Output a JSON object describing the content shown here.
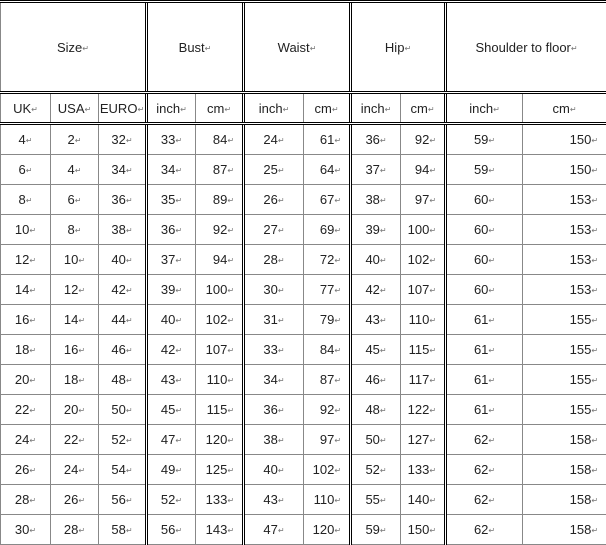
{
  "groups": [
    "Size",
    "Bust",
    "Waist",
    "Hip",
    "Shoulder to floor"
  ],
  "subheaders": [
    "UK",
    "USA",
    "EURO",
    "inch",
    "cm",
    "inch",
    "cm",
    "inch",
    "cm",
    "inch",
    "cm"
  ],
  "rows": [
    [
      "4",
      "2",
      "32",
      "33",
      "84",
      "24",
      "61",
      "36",
      "92",
      "59",
      "150"
    ],
    [
      "6",
      "4",
      "34",
      "34",
      "87",
      "25",
      "64",
      "37",
      "94",
      "59",
      "150"
    ],
    [
      "8",
      "6",
      "36",
      "35",
      "89",
      "26",
      "67",
      "38",
      "97",
      "60",
      "153"
    ],
    [
      "10",
      "8",
      "38",
      "36",
      "92",
      "27",
      "69",
      "39",
      "100",
      "60",
      "153"
    ],
    [
      "12",
      "10",
      "40",
      "37",
      "94",
      "28",
      "72",
      "40",
      "102",
      "60",
      "153"
    ],
    [
      "14",
      "12",
      "42",
      "39",
      "100",
      "30",
      "77",
      "42",
      "107",
      "60",
      "153"
    ],
    [
      "16",
      "14",
      "44",
      "40",
      "102",
      "31",
      "79",
      "43",
      "110",
      "61",
      "155"
    ],
    [
      "18",
      "16",
      "46",
      "42",
      "107",
      "33",
      "84",
      "45",
      "115",
      "61",
      "155"
    ],
    [
      "20",
      "18",
      "48",
      "43",
      "110",
      "34",
      "87",
      "46",
      "117",
      "61",
      "155"
    ],
    [
      "22",
      "20",
      "50",
      "45",
      "115",
      "36",
      "92",
      "48",
      "122",
      "61",
      "155"
    ],
    [
      "24",
      "22",
      "52",
      "47",
      "120",
      "38",
      "97",
      "50",
      "127",
      "62",
      "158"
    ],
    [
      "26",
      "24",
      "54",
      "49",
      "125",
      "40",
      "102",
      "52",
      "133",
      "62",
      "158"
    ],
    [
      "28",
      "26",
      "56",
      "52",
      "133",
      "43",
      "110",
      "55",
      "140",
      "62",
      "158"
    ],
    [
      "30",
      "28",
      "58",
      "56",
      "143",
      "47",
      "120",
      "59",
      "150",
      "62",
      "158"
    ]
  ]
}
